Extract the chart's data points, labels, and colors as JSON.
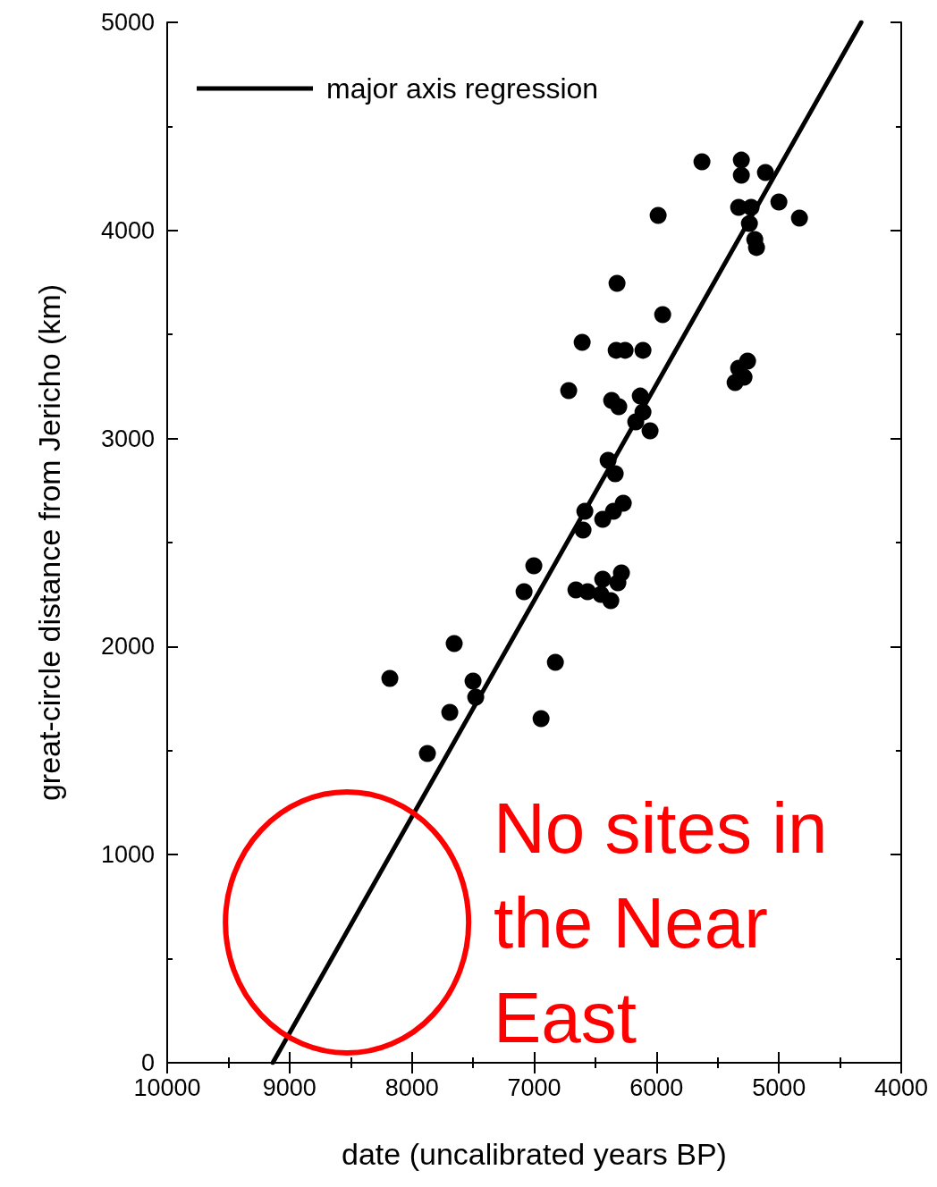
{
  "chart_data": {
    "type": "scatter",
    "xlabel": "date (uncalibrated years BP)",
    "ylabel": "great-circle distance from Jericho (km)",
    "xlim": [
      10000,
      4000
    ],
    "xticks": [
      10000,
      9000,
      8000,
      7000,
      6000,
      5000,
      4000
    ],
    "ylim": [
      0,
      5000
    ],
    "yticks": [
      0,
      1000,
      2000,
      3000,
      4000,
      5000
    ],
    "grid": false,
    "legend": "top left",
    "marker": "circle",
    "annotations": [
      "No sites in the Near East"
    ],
    "series": [
      {
        "color": "#000000",
        "x": [
          8180,
          7873,
          7690,
          7654,
          7500,
          7478,
          7083,
          7003,
          6944,
          6827,
          6718,
          6608,
          6659,
          6564,
          6586,
          6601,
          6440,
          6455,
          6440,
          6374,
          6352,
          6396,
          6338,
          6316,
          6287,
          6272,
          6367,
          6309,
          6330,
          6257,
          6323,
          6111,
          6133,
          6111,
          6170,
          6053,
          5950,
          5987,
          5629,
          5307,
          5307,
          5110,
          5329,
          5227,
          5241,
          5000,
          4832,
          5197,
          5183,
          5256,
          5329,
          5285,
          5358
        ],
        "values": [
          1847,
          1486,
          1684,
          2015,
          1834,
          1757,
          2264,
          2388,
          1654,
          1924,
          3230,
          3462,
          2272,
          2264,
          2650,
          2560,
          2612,
          2251,
          2324,
          2221,
          2650,
          2895,
          2831,
          2307,
          2354,
          2689,
          3183,
          3153,
          3424,
          3424,
          3746,
          3424,
          3204,
          3127,
          3080,
          3037,
          3595,
          4072,
          4330,
          4338,
          4265,
          4278,
          4111,
          4111,
          4033,
          4137,
          4059,
          3956,
          3918,
          3372,
          3338,
          3295,
          3269
        ]
      },
      {
        "type": "line",
        "name": "major axis regression",
        "color": "#000000",
        "marker": "none",
        "line_style": "solid",
        "x": [
          9137,
          4327
        ],
        "values": [
          0,
          5000
        ]
      }
    ]
  }
}
